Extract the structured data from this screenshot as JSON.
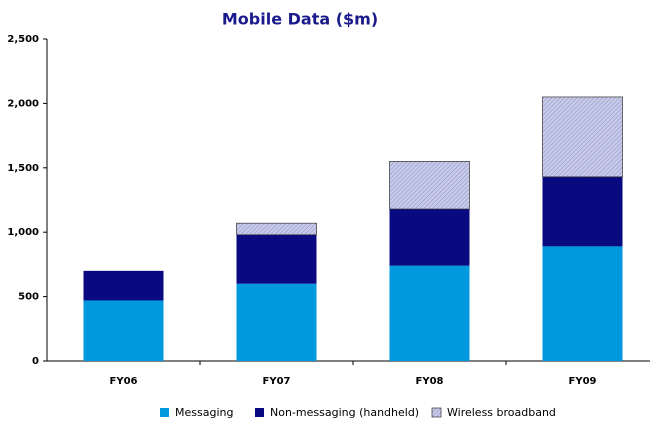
{
  "chart_data": {
    "type": "stacked_bar",
    "title": "Mobile Data ($m)",
    "categories": [
      "FY06",
      "FY07",
      "FY08",
      "FY09"
    ],
    "series": [
      {
        "name": "Messaging",
        "color": "#0099dd",
        "values": [
          470,
          600,
          740,
          890
        ]
      },
      {
        "name": "Non-messaging (handheld)",
        "color": "#0a0a80",
        "values": [
          230,
          380,
          440,
          540
        ]
      },
      {
        "name": "Wireless broadband",
        "color": "#c8cbe8",
        "values": [
          0,
          90,
          370,
          620
        ]
      }
    ],
    "ylim": [
      0,
      2500
    ],
    "yticks": [
      0,
      500,
      {
        "value": 1000,
        "label": "1,000"
      },
      {
        "value": 1500,
        "label": "1,500"
      },
      {
        "value": 2000,
        "label": "2,000"
      },
      {
        "value": 2500,
        "label": "2,500"
      }
    ],
    "grid": false,
    "legend": "bottom"
  }
}
